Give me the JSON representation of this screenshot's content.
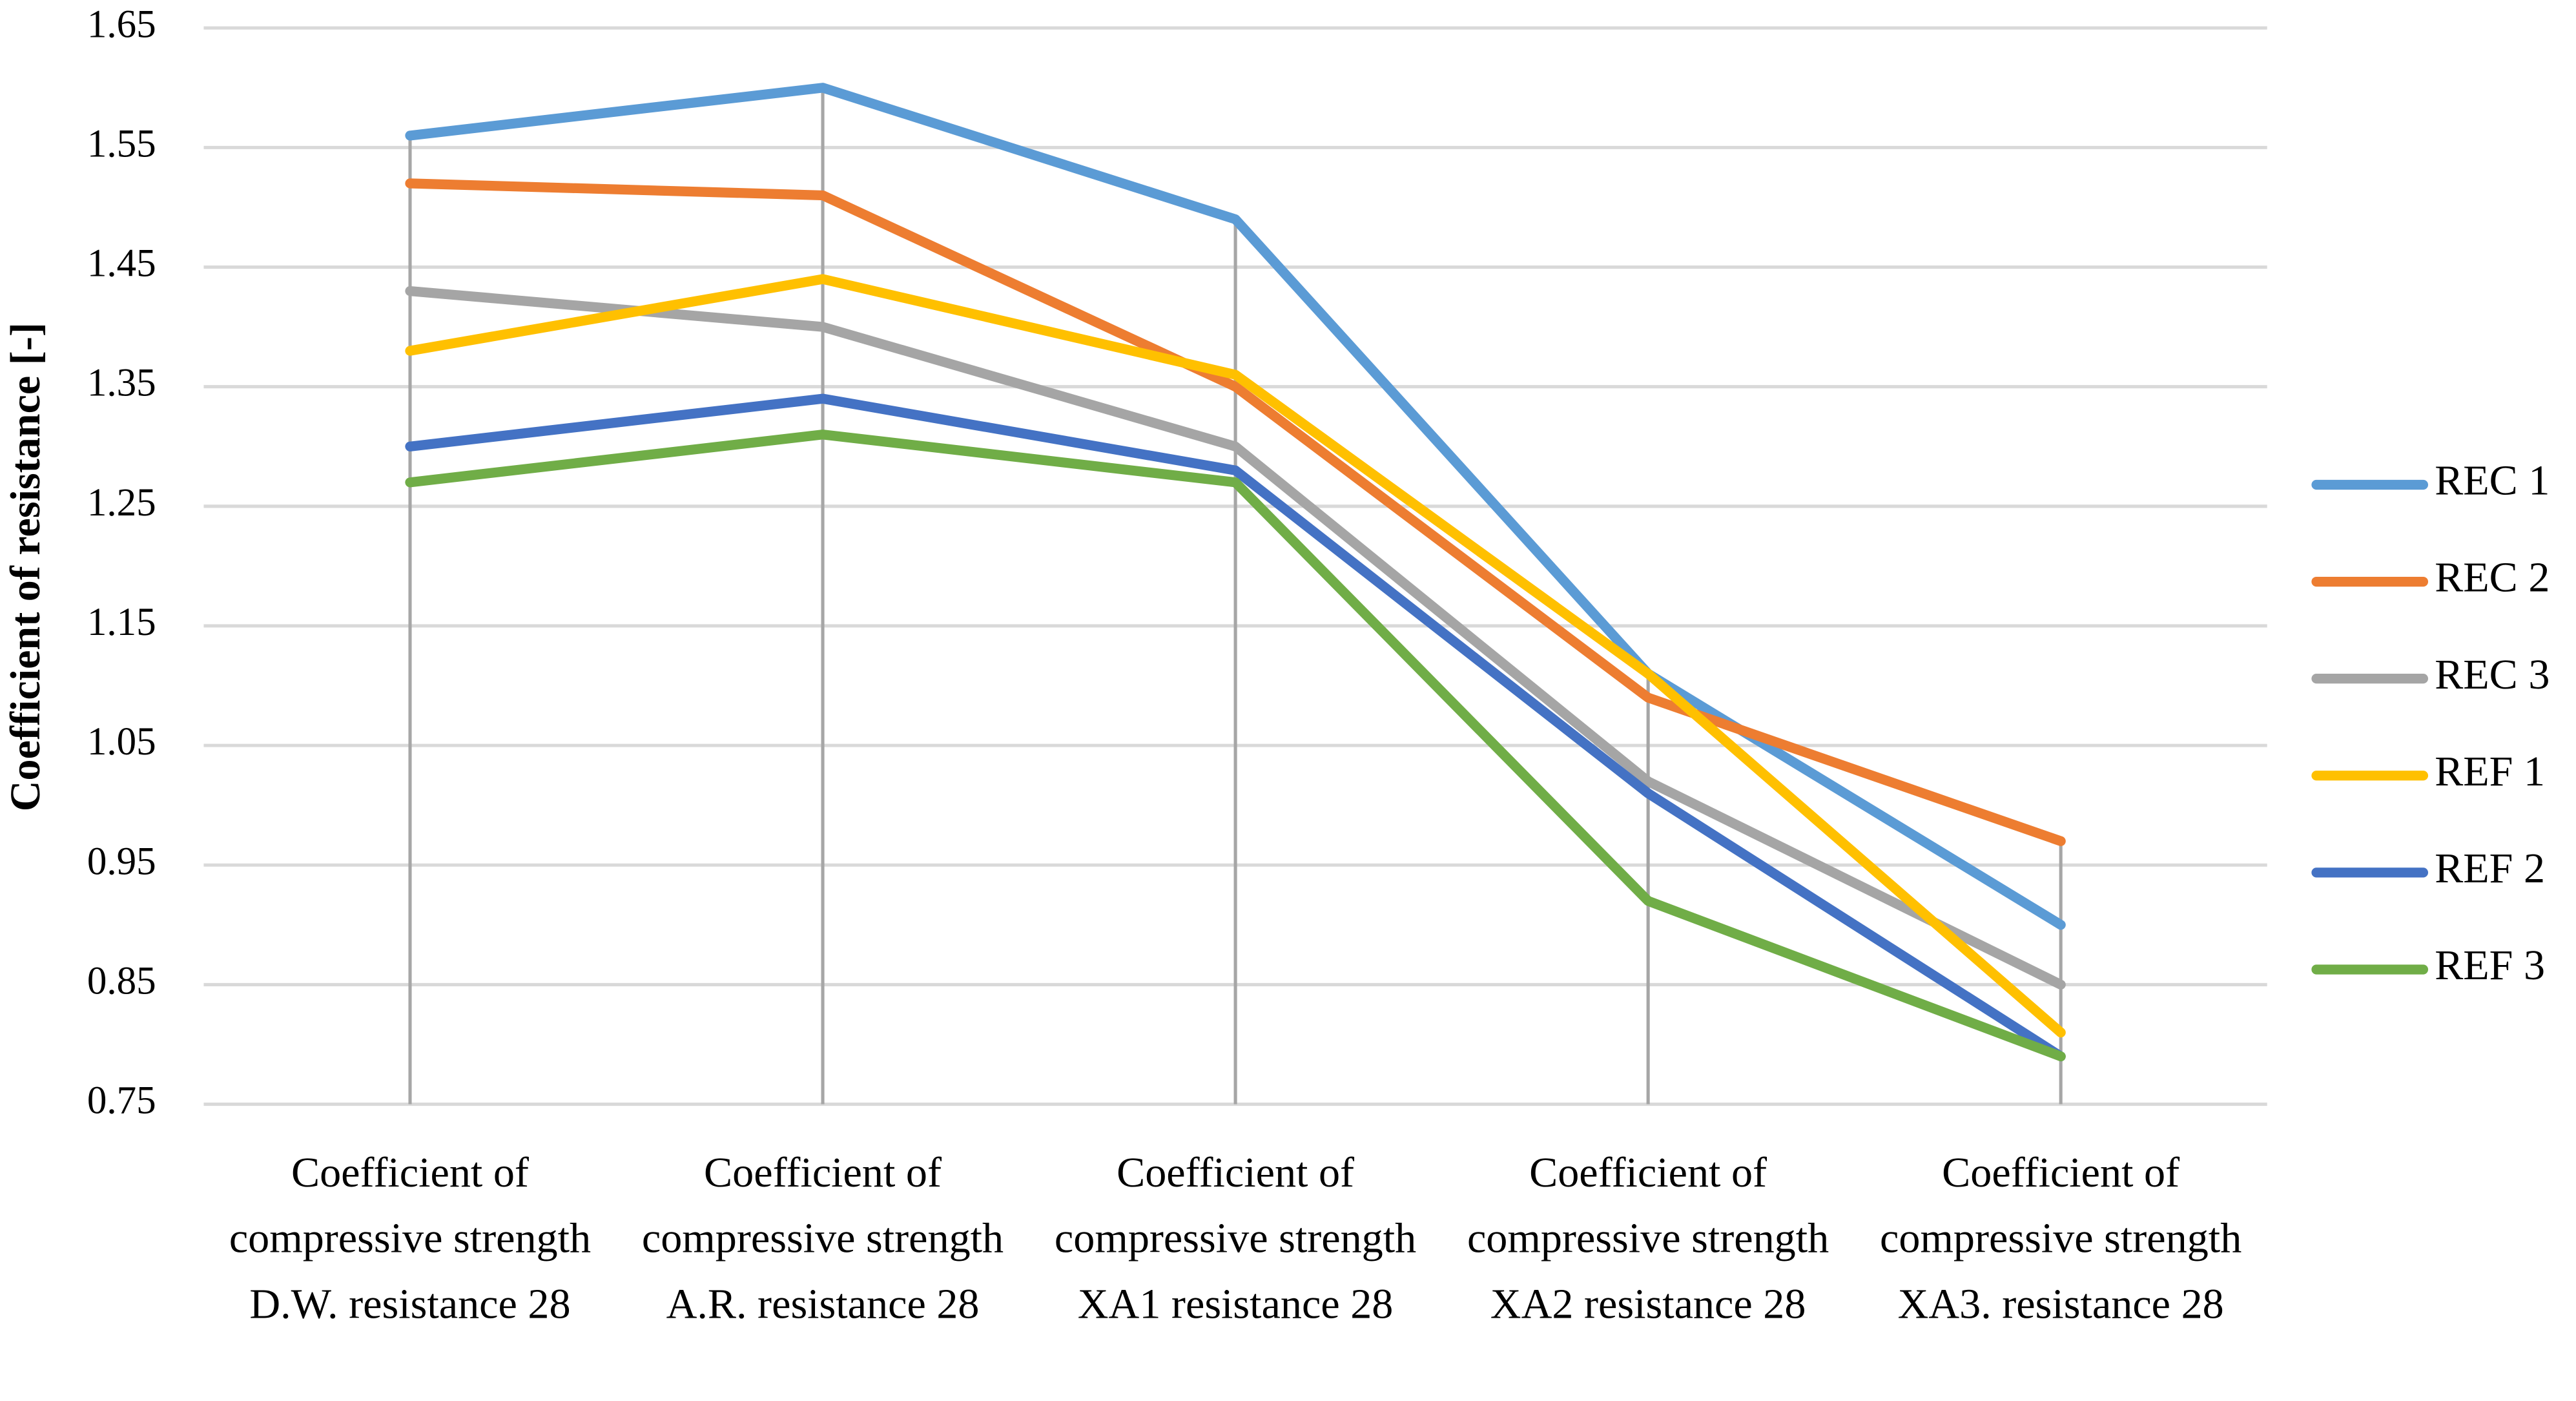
{
  "chart_data": {
    "type": "line",
    "y_label": "Coefficient of resistance [-]",
    "categories": [
      "Coefficient of compressive strength D.W. resistance 28",
      "Coefficient of compressive strength A.R. resistance 28",
      "Coefficient of compressive strength XA1 resistance 28",
      "Coefficient of compressive strength XA2 resistance 28",
      "Coefficient of compressive strength XA3. resistance 28"
    ],
    "series": [
      {
        "name": "REC 1",
        "color": "#5b9bd5",
        "values": [
          1.56,
          1.6,
          1.49,
          1.11,
          0.9
        ]
      },
      {
        "name": "REC 2",
        "color": "#ed7d31",
        "values": [
          1.52,
          1.51,
          1.35,
          1.09,
          0.97
        ]
      },
      {
        "name": "REC 3",
        "color": "#a5a5a5",
        "values": [
          1.43,
          1.4,
          1.3,
          1.02,
          0.85
        ]
      },
      {
        "name": "REF 1",
        "color": "#ffc000",
        "values": [
          1.38,
          1.44,
          1.36,
          1.11,
          0.81
        ]
      },
      {
        "name": "REF 2",
        "color": "#4472c4",
        "values": [
          1.3,
          1.34,
          1.28,
          1.01,
          0.79
        ]
      },
      {
        "name": "REF 3",
        "color": "#70ad47",
        "values": [
          1.27,
          1.31,
          1.27,
          0.92,
          0.79
        ]
      }
    ],
    "ylim": [
      0.75,
      1.65
    ],
    "yticks": [
      0.75,
      0.85,
      0.95,
      1.05,
      1.15,
      1.25,
      1.35,
      1.45,
      1.55,
      1.65
    ],
    "grid": true,
    "legend": "right"
  }
}
